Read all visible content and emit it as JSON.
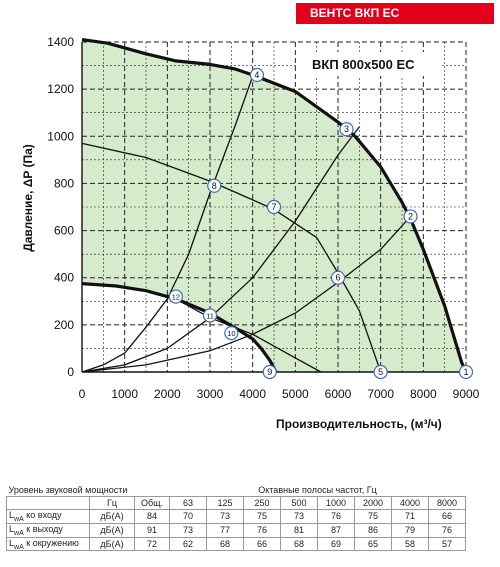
{
  "header": {
    "badge": "ВЕНТС ВКП ЕС"
  },
  "chart_data": {
    "type": "line",
    "title": "ВКП 800x500 ЕС",
    "xlabel": "Производительность, (м³/ч)",
    "ylabel": "Давление, ΔP (Па)",
    "xlim": [
      0,
      9000
    ],
    "ylim": [
      0,
      1400
    ],
    "x_ticks": [
      "0",
      "1000",
      "2000",
      "3000",
      "4000",
      "5000",
      "6000",
      "7000",
      "8000",
      "9000"
    ],
    "y_ticks": [
      "0",
      "200",
      "400",
      "600",
      "800",
      "1000",
      "1200",
      "1400"
    ],
    "grid": true,
    "series": [
      {
        "role": "max-curve",
        "points": [
          [
            0,
            1410
          ],
          [
            600,
            1395
          ],
          [
            1500,
            1350
          ],
          [
            2200,
            1320
          ],
          [
            3000,
            1305
          ],
          [
            3600,
            1285
          ],
          [
            4000,
            1260
          ],
          [
            5000,
            1190
          ],
          [
            6000,
            1060
          ],
          [
            6400,
            1000
          ],
          [
            7000,
            870
          ],
          [
            7500,
            720
          ],
          [
            7700,
            650
          ],
          [
            8000,
            520
          ],
          [
            8500,
            280
          ],
          [
            8900,
            40
          ],
          [
            9000,
            0
          ]
        ]
      },
      {
        "role": "min-curve",
        "points": [
          [
            0,
            375
          ],
          [
            800,
            365
          ],
          [
            1500,
            345
          ],
          [
            2200,
            310
          ],
          [
            2800,
            265
          ],
          [
            3000,
            250
          ],
          [
            3700,
            175
          ],
          [
            4000,
            140
          ],
          [
            4200,
            100
          ],
          [
            4400,
            50
          ],
          [
            4550,
            0
          ]
        ]
      },
      {
        "role": "system-line",
        "points": [
          [
            0,
            0
          ],
          [
            500,
            30
          ],
          [
            1000,
            80
          ],
          [
            1500,
            190
          ],
          [
            2000,
            310
          ],
          [
            2500,
            500
          ],
          [
            3000,
            760
          ],
          [
            3600,
            1050
          ],
          [
            4000,
            1255
          ]
        ]
      },
      {
        "role": "system-line",
        "points": [
          [
            0,
            0
          ],
          [
            1000,
            30
          ],
          [
            2000,
            100
          ],
          [
            3000,
            230
          ],
          [
            4000,
            400
          ],
          [
            5000,
            640
          ],
          [
            6000,
            920
          ],
          [
            6500,
            1040
          ]
        ]
      },
      {
        "role": "system-line",
        "points": [
          [
            0,
            0
          ],
          [
            1500,
            30
          ],
          [
            3000,
            90
          ],
          [
            4000,
            160
          ],
          [
            5000,
            250
          ],
          [
            6000,
            380
          ],
          [
            7000,
            520
          ],
          [
            7700,
            660
          ]
        ]
      },
      {
        "role": "rpm-line",
        "points": [
          [
            0,
            970
          ],
          [
            1500,
            910
          ],
          [
            3000,
            810
          ],
          [
            4000,
            730
          ],
          [
            4500,
            690
          ],
          [
            5500,
            570
          ],
          [
            6000,
            420
          ],
          [
            6500,
            260
          ],
          [
            7000,
            0
          ]
        ]
      },
      {
        "role": "rpm-line",
        "points": [
          [
            2200,
            310
          ],
          [
            3000,
            230
          ],
          [
            4000,
            160
          ],
          [
            5000,
            60
          ],
          [
            5600,
            0
          ]
        ]
      }
    ],
    "point_labels": [
      {
        "text": "1",
        "x": 9000,
        "y": 0
      },
      {
        "text": "2",
        "x": 7700,
        "y": 660
      },
      {
        "text": "3",
        "x": 6200,
        "y": 1030
      },
      {
        "text": "4",
        "x": 4100,
        "y": 1260
      },
      {
        "text": "5",
        "x": 7000,
        "y": 0
      },
      {
        "text": "6",
        "x": 6000,
        "y": 400
      },
      {
        "text": "7",
        "x": 4500,
        "y": 700
      },
      {
        "text": "8",
        "x": 3100,
        "y": 790
      },
      {
        "text": "9",
        "x": 4400,
        "y": 0
      },
      {
        "text": "10",
        "x": 3500,
        "y": 165
      },
      {
        "text": "11",
        "x": 3000,
        "y": 240
      },
      {
        "text": "12",
        "x": 2200,
        "y": 320
      }
    ],
    "colors": {
      "fill": "#d6ebcb",
      "curve": "#111111",
      "grid": "#222222",
      "marker_stroke": "#3b6fb6"
    }
  },
  "sound_table": {
    "header_left": "Уровень звуковой мощности",
    "header_right": "Октавные полосы частот, Гц",
    "freq_row_label": "Гц",
    "columns": [
      "Общ.",
      "63",
      "125",
      "250",
      "500",
      "1000",
      "2000",
      "4000",
      "8000"
    ],
    "rows": [
      {
        "name_main": "L",
        "name_sub": "wA",
        "name_rest": " ко входу",
        "unit": "дБ(А)",
        "values": [
          "84",
          "70",
          "73",
          "75",
          "73",
          "76",
          "75",
          "71",
          "66"
        ]
      },
      {
        "name_main": "L",
        "name_sub": "wA",
        "name_rest": " к выходу",
        "unit": "дБ(А)",
        "values": [
          "91",
          "73",
          "77",
          "76",
          "81",
          "87",
          "86",
          "79",
          "76"
        ]
      },
      {
        "name_main": "L",
        "name_sub": "wA",
        "name_rest": " к окружению",
        "unit": "дБ(А)",
        "values": [
          "72",
          "62",
          "68",
          "66",
          "68",
          "69",
          "65",
          "58",
          "57"
        ]
      }
    ]
  }
}
